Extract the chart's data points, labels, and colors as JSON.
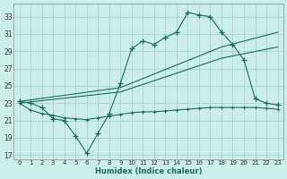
{
  "bg_color": "#cceee8",
  "grid_color": "#aad4ce",
  "line_color": "#1a6b5a",
  "xlabel": "Humidex (Indice chaleur)",
  "xlim": [
    -0.5,
    23.5
  ],
  "ylim": [
    16.5,
    34.5
  ],
  "yticks": [
    17,
    19,
    21,
    23,
    25,
    27,
    29,
    31,
    33
  ],
  "xticks": [
    0,
    1,
    2,
    3,
    4,
    5,
    6,
    7,
    8,
    9,
    10,
    11,
    12,
    13,
    14,
    15,
    16,
    17,
    18,
    19,
    20,
    21,
    22,
    23
  ],
  "main_x": [
    0,
    1,
    2,
    3,
    4,
    5,
    6,
    7,
    8,
    9,
    10,
    11,
    12,
    13,
    14,
    15,
    16,
    17,
    18,
    19,
    20,
    21,
    22,
    23
  ],
  "main_y": [
    23.2,
    23.0,
    22.5,
    21.2,
    21.0,
    19.2,
    17.2,
    19.5,
    21.8,
    25.3,
    29.3,
    30.2,
    29.8,
    30.6,
    31.2,
    33.5,
    33.2,
    33.0,
    31.2,
    29.8,
    28.0,
    23.5,
    23.0,
    22.8
  ],
  "trend1_x": [
    0,
    9,
    18,
    23
  ],
  "trend1_y": [
    23.2,
    24.8,
    29.5,
    31.2
  ],
  "trend2_x": [
    0,
    9,
    18,
    23
  ],
  "trend2_y": [
    23.0,
    24.3,
    28.2,
    29.5
  ],
  "flat_x": [
    0,
    1,
    2,
    3,
    4,
    5,
    6,
    7,
    8,
    9,
    10,
    11,
    12,
    13,
    14,
    15,
    16,
    17,
    18,
    19,
    20,
    21,
    22,
    23
  ],
  "flat_y": [
    23.0,
    22.2,
    21.8,
    21.6,
    21.3,
    21.2,
    21.1,
    21.3,
    21.5,
    21.7,
    21.9,
    22.0,
    22.0,
    22.1,
    22.2,
    22.3,
    22.4,
    22.5,
    22.5,
    22.5,
    22.5,
    22.5,
    22.4,
    22.3
  ]
}
